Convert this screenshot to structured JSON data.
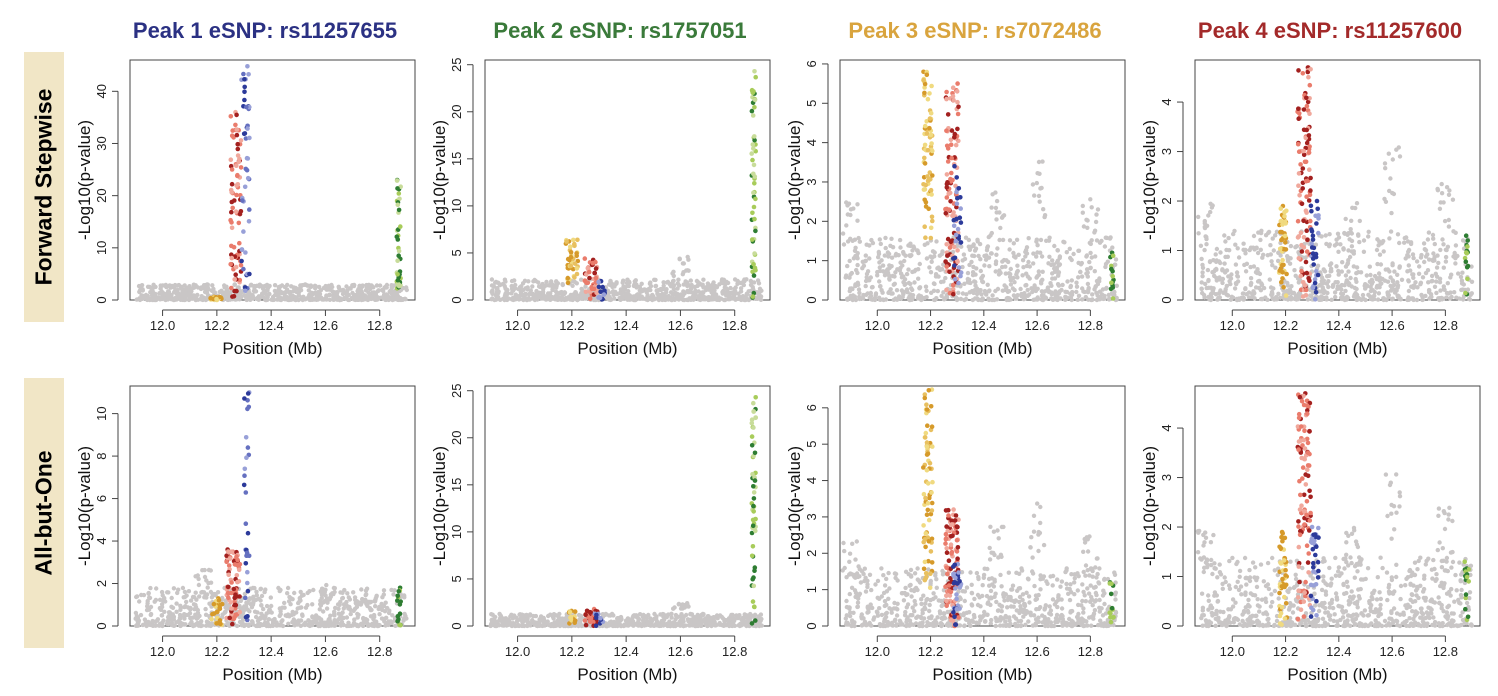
{
  "columns": [
    {
      "title": "Peak 1 eSNP: rs11257655",
      "color": "#2b3183"
    },
    {
      "title": "Peak 2 eSNP: rs1757051",
      "color": "#3a7a3a"
    },
    {
      "title": "Peak 3 eSNP: rs7072486",
      "color": "#d9a43e"
    },
    {
      "title": "Peak 4 eSNP: rs11257600",
      "color": "#a32a2a"
    }
  ],
  "rows": [
    {
      "label": "Forward Stepwise"
    },
    {
      "label": "All-but-One"
    }
  ],
  "colors": {
    "background_snp": "#c9c6c6",
    "peak1_dark": "#2c3a9a",
    "peak1_light": "#98a0d8",
    "peak2_dark": "#2e7d32",
    "peak2_light": "#a8cc5a",
    "peak3_dark": "#d69a2a",
    "peak3_light": "#f0da80",
    "peak4_dark": "#a3201f",
    "peak4_light": "#ea7c6c"
  },
  "chart_data": [
    {
      "id": "fs-peak1",
      "type": "scatter",
      "xlabel": "Position (Mb)",
      "ylabel": "-Log10(p-value)",
      "xlim": [
        11.88,
        12.93
      ],
      "xticks": [
        "12.0",
        "12.2",
        "12.4",
        "12.6",
        "12.8"
      ],
      "ylim": [
        0,
        46
      ],
      "yticks": [
        0,
        10,
        20,
        30,
        40
      ],
      "bg_max": 3,
      "bg_spikes": [],
      "clusters": [
        {
          "x": 12.27,
          "width": 0.04,
          "ymin": 0,
          "ymax": 36,
          "count": 80,
          "colors": [
            "#ea7c6c",
            "#f0a89c",
            "#a3201f"
          ]
        },
        {
          "x": 12.305,
          "width": 0.03,
          "ymin": 0,
          "ymax": 44.8,
          "count": 45,
          "colors": [
            "#2c3a9a",
            "#98a0d8",
            "#6570c0"
          ]
        },
        {
          "x": 12.2,
          "width": 0.05,
          "ymin": 0,
          "ymax": 0.6,
          "count": 20,
          "colors": [
            "#d69a2a",
            "#f0da80"
          ]
        },
        {
          "x": 12.87,
          "width": 0.015,
          "ymin": 0,
          "ymax": 23,
          "count": 40,
          "colors": [
            "#2e7d32",
            "#a8cc5a",
            "#c8dc9a"
          ]
        }
      ]
    },
    {
      "id": "fs-peak2",
      "type": "scatter",
      "xlabel": "Position (Mb)",
      "ylabel": "-Log10(p-value)",
      "xlim": [
        11.88,
        12.93
      ],
      "xticks": [
        "12.0",
        "12.2",
        "12.4",
        "12.6",
        "12.8"
      ],
      "ylim": [
        0,
        25.5
      ],
      "yticks": [
        0,
        5,
        10,
        15,
        20,
        25
      ],
      "bg_max": 2.2,
      "bg_spikes": [
        [
          12.6,
          4.6
        ]
      ],
      "clusters": [
        {
          "x": 12.2,
          "width": 0.045,
          "ymin": 1.5,
          "ymax": 6.4,
          "count": 40,
          "colors": [
            "#d69a2a",
            "#f0da80",
            "#e8c060"
          ]
        },
        {
          "x": 12.27,
          "width": 0.05,
          "ymin": 0,
          "ymax": 4.4,
          "count": 40,
          "colors": [
            "#ea7c6c",
            "#a3201f",
            "#f0a89c"
          ]
        },
        {
          "x": 12.31,
          "width": 0.025,
          "ymin": 0,
          "ymax": 2,
          "count": 15,
          "colors": [
            "#2c3a9a",
            "#98a0d8"
          ]
        },
        {
          "x": 12.87,
          "width": 0.015,
          "ymin": 0,
          "ymax": 24.3,
          "count": 55,
          "colors": [
            "#2e7d32",
            "#a8cc5a",
            "#c8dc9a"
          ]
        }
      ]
    },
    {
      "id": "fs-peak3",
      "type": "scatter",
      "xlabel": "Position (Mb)",
      "ylabel": "-Log10(p-value)",
      "xlim": [
        11.86,
        12.93
      ],
      "xticks": [
        "12.0",
        "12.2",
        "12.4",
        "12.6",
        "12.8"
      ],
      "ylim": [
        0,
        6.1
      ],
      "yticks": [
        0,
        1,
        2,
        3,
        4,
        5,
        6
      ],
      "bg_max": 1.6,
      "bg_spikes": [
        [
          12.6,
          3.6
        ],
        [
          12.8,
          2.6
        ],
        [
          11.9,
          2.5
        ],
        [
          12.45,
          2.9
        ]
      ],
      "clusters": [
        {
          "x": 12.19,
          "width": 0.035,
          "ymin": 1.5,
          "ymax": 5.8,
          "count": 70,
          "colors": [
            "#d69a2a",
            "#f0da80",
            "#e8c060"
          ]
        },
        {
          "x": 12.28,
          "width": 0.05,
          "ymin": 0,
          "ymax": 5.5,
          "count": 110,
          "colors": [
            "#ea7c6c",
            "#f0a89c",
            "#a3201f"
          ]
        },
        {
          "x": 12.3,
          "width": 0.03,
          "ymin": 0,
          "ymax": 3.4,
          "count": 30,
          "colors": [
            "#2c3a9a",
            "#98a0d8"
          ]
        },
        {
          "x": 12.88,
          "width": 0.015,
          "ymin": 0,
          "ymax": 1.2,
          "count": 15,
          "colors": [
            "#2e7d32",
            "#a8cc5a"
          ]
        }
      ]
    },
    {
      "id": "fs-peak4",
      "type": "scatter",
      "xlabel": "Position (Mb)",
      "ylabel": "-Log10(p-value)",
      "xlim": [
        11.86,
        12.93
      ],
      "xticks": [
        "12.0",
        "12.2",
        "12.4",
        "12.6",
        "12.8"
      ],
      "ylim": [
        0,
        4.85
      ],
      "yticks": [
        0,
        1,
        2,
        3,
        4
      ],
      "bg_max": 1.4,
      "bg_spikes": [
        [
          12.6,
          3.1
        ],
        [
          12.8,
          2.4
        ],
        [
          11.9,
          2.0
        ],
        [
          12.45,
          2.1
        ]
      ],
      "clusters": [
        {
          "x": 12.19,
          "width": 0.03,
          "ymin": 0,
          "ymax": 1.9,
          "count": 45,
          "colors": [
            "#d69a2a",
            "#f0da80"
          ]
        },
        {
          "x": 12.27,
          "width": 0.05,
          "ymin": 0,
          "ymax": 4.7,
          "count": 110,
          "colors": [
            "#ea7c6c",
            "#f0a89c",
            "#a3201f"
          ]
        },
        {
          "x": 12.31,
          "width": 0.03,
          "ymin": 0,
          "ymax": 2.0,
          "count": 35,
          "colors": [
            "#2c3a9a",
            "#98a0d8"
          ]
        },
        {
          "x": 12.88,
          "width": 0.015,
          "ymin": 0,
          "ymax": 1.3,
          "count": 15,
          "colors": [
            "#2e7d32",
            "#a8cc5a"
          ]
        }
      ]
    },
    {
      "id": "abo-peak1",
      "type": "scatter",
      "xlabel": "Position (Mb)",
      "ylabel": "-Log10(p-value)",
      "xlim": [
        11.88,
        12.93
      ],
      "xticks": [
        "12.0",
        "12.2",
        "12.4",
        "12.6",
        "12.8"
      ],
      "ylim": [
        0,
        11.3
      ],
      "yticks": [
        0,
        2,
        4,
        6,
        8,
        10
      ],
      "bg_max": 1.8,
      "bg_spikes": [
        [
          12.15,
          2.8
        ],
        [
          12.6,
          2.0
        ]
      ],
      "clusters": [
        {
          "x": 12.26,
          "width": 0.05,
          "ymin": 0,
          "ymax": 3.6,
          "count": 80,
          "colors": [
            "#ea7c6c",
            "#f0a89c",
            "#a3201f"
          ]
        },
        {
          "x": 12.31,
          "width": 0.02,
          "ymin": 0,
          "ymax": 11,
          "count": 30,
          "colors": [
            "#2c3a9a",
            "#98a0d8",
            "#6570c0"
          ]
        },
        {
          "x": 12.2,
          "width": 0.04,
          "ymin": 0,
          "ymax": 1.3,
          "count": 25,
          "colors": [
            "#d69a2a",
            "#f0da80"
          ]
        },
        {
          "x": 12.87,
          "width": 0.015,
          "ymin": 0,
          "ymax": 1.8,
          "count": 15,
          "colors": [
            "#2e7d32",
            "#a8cc5a"
          ]
        }
      ]
    },
    {
      "id": "abo-peak2",
      "type": "scatter",
      "xlabel": "Position (Mb)",
      "ylabel": "-Log10(p-value)",
      "xlim": [
        11.88,
        12.93
      ],
      "xticks": [
        "12.0",
        "12.2",
        "12.4",
        "12.6",
        "12.8"
      ],
      "ylim": [
        0,
        25.5
      ],
      "yticks": [
        0,
        5,
        10,
        15,
        20,
        25
      ],
      "bg_max": 1.3,
      "bg_spikes": [
        [
          12.6,
          2.5
        ]
      ],
      "clusters": [
        {
          "x": 12.2,
          "width": 0.03,
          "ymin": 0,
          "ymax": 1.6,
          "count": 15,
          "colors": [
            "#d69a2a",
            "#f0da80"
          ]
        },
        {
          "x": 12.27,
          "width": 0.05,
          "ymin": 0,
          "ymax": 1.8,
          "count": 30,
          "colors": [
            "#ea7c6c",
            "#a3201f"
          ]
        },
        {
          "x": 12.3,
          "width": 0.03,
          "ymin": 0,
          "ymax": 1.3,
          "count": 12,
          "colors": [
            "#2c3a9a",
            "#98a0d8"
          ]
        },
        {
          "x": 12.87,
          "width": 0.015,
          "ymin": 0,
          "ymax": 24.3,
          "count": 55,
          "colors": [
            "#2e7d32",
            "#a8cc5a",
            "#c8dc9a"
          ]
        }
      ]
    },
    {
      "id": "abo-peak3",
      "type": "scatter",
      "xlabel": "Position (Mb)",
      "ylabel": "-Log10(p-value)",
      "xlim": [
        11.86,
        12.93
      ],
      "xticks": [
        "12.0",
        "12.2",
        "12.4",
        "12.6",
        "12.8"
      ],
      "ylim": [
        0,
        6.6
      ],
      "yticks": [
        0,
        1,
        2,
        3,
        4,
        5,
        6
      ],
      "bg_max": 1.6,
      "bg_spikes": [
        [
          12.6,
          3.4
        ],
        [
          12.8,
          2.6
        ],
        [
          11.9,
          2.4
        ],
        [
          12.45,
          2.8
        ]
      ],
      "clusters": [
        {
          "x": 12.19,
          "width": 0.035,
          "ymin": 1.0,
          "ymax": 6.5,
          "count": 75,
          "colors": [
            "#d69a2a",
            "#f0da80",
            "#e8c060"
          ]
        },
        {
          "x": 12.28,
          "width": 0.05,
          "ymin": 0,
          "ymax": 3.2,
          "count": 100,
          "colors": [
            "#ea7c6c",
            "#f0a89c",
            "#a3201f"
          ]
        },
        {
          "x": 12.3,
          "width": 0.03,
          "ymin": 0,
          "ymax": 1.7,
          "count": 30,
          "colors": [
            "#2c3a9a",
            "#98a0d8"
          ]
        },
        {
          "x": 12.88,
          "width": 0.015,
          "ymin": 0,
          "ymax": 1.2,
          "count": 15,
          "colors": [
            "#2e7d32",
            "#a8cc5a"
          ]
        }
      ]
    },
    {
      "id": "abo-peak4",
      "type": "scatter",
      "xlabel": "Position (Mb)",
      "ylabel": "-Log10(p-value)",
      "xlim": [
        11.86,
        12.93
      ],
      "xticks": [
        "12.0",
        "12.2",
        "12.4",
        "12.6",
        "12.8"
      ],
      "ylim": [
        0,
        4.85
      ],
      "yticks": [
        0,
        1,
        2,
        3,
        4
      ],
      "bg_max": 1.4,
      "bg_spikes": [
        [
          12.6,
          3.1
        ],
        [
          12.8,
          2.4
        ],
        [
          11.9,
          2.0
        ],
        [
          12.45,
          2.1
        ]
      ],
      "clusters": [
        {
          "x": 12.19,
          "width": 0.03,
          "ymin": 0,
          "ymax": 1.9,
          "count": 45,
          "colors": [
            "#d69a2a",
            "#f0da80"
          ]
        },
        {
          "x": 12.27,
          "width": 0.05,
          "ymin": 0,
          "ymax": 4.7,
          "count": 110,
          "colors": [
            "#ea7c6c",
            "#f0a89c",
            "#a3201f"
          ]
        },
        {
          "x": 12.31,
          "width": 0.03,
          "ymin": 0,
          "ymax": 2.0,
          "count": 35,
          "colors": [
            "#2c3a9a",
            "#98a0d8"
          ]
        },
        {
          "x": 12.88,
          "width": 0.015,
          "ymin": 0,
          "ymax": 1.3,
          "count": 15,
          "colors": [
            "#2e7d32",
            "#a8cc5a"
          ]
        }
      ]
    }
  ]
}
